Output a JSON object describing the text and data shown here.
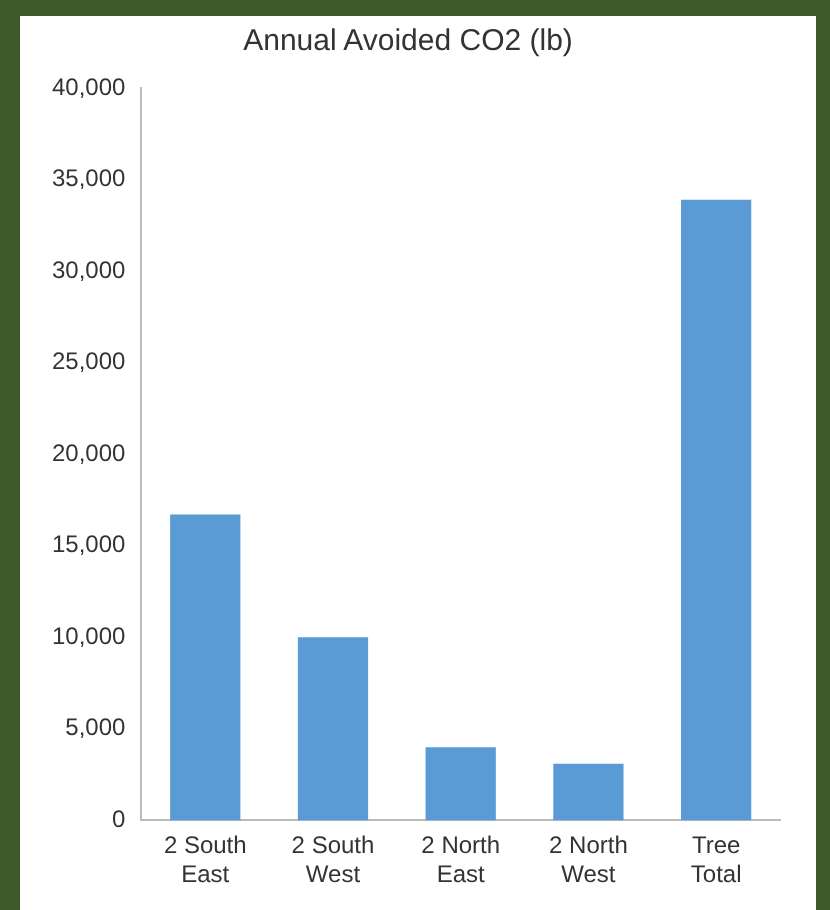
{
  "chart_data": {
    "type": "bar",
    "title": "Annual Avoided CO2 (lb)",
    "categories": [
      "2 South East",
      "2 South West",
      "2 North East",
      "2 North West",
      "Tree Total"
    ],
    "values": [
      16700,
      10000,
      4000,
      3100,
      33900
    ],
    "color": "#5b9bd5",
    "ylim": [
      0,
      40000
    ],
    "yticks": [
      {
        "value": 0,
        "label": "0"
      },
      {
        "value": 5000,
        "label": "5,000"
      },
      {
        "value": 10000,
        "label": "10,000"
      },
      {
        "value": 15000,
        "label": "15,000"
      },
      {
        "value": 20000,
        "label": "20,000"
      },
      {
        "value": 25000,
        "label": "25,000"
      },
      {
        "value": 30000,
        "label": "30,000"
      },
      {
        "value": 35000,
        "label": "35,000"
      },
      {
        "value": 40000,
        "label": "40,000"
      }
    ],
    "grid": false,
    "legend": false
  }
}
